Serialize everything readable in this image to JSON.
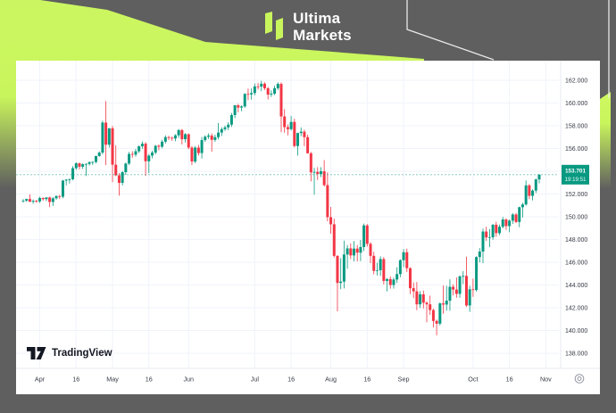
{
  "header": {
    "brand_top": "Ultima",
    "brand_bottom": "Markets",
    "accent_color": "#c9f55c",
    "frame_color": "#5f5f5f"
  },
  "attribution": {
    "text": "TradingView"
  },
  "chart_data": {
    "type": "candlestick",
    "title": "",
    "up_color": "#089981",
    "down_color": "#f23645",
    "grid_color": "#f0f3fa",
    "axis_text_color": "#363a45",
    "last_price": "153.701",
    "last_price_value": 153.701,
    "countdown": "19:19:51",
    "badge_color": "#089981",
    "ylim": [
      137.0,
      163.5
    ],
    "y_axis_labels": [
      "162.000",
      "160.000",
      "158.000",
      "156.000",
      "154.000",
      "152.000",
      "150.000",
      "148.000",
      "146.000",
      "144.000",
      "142.000",
      "140.000",
      "138.000"
    ],
    "x_labels": [
      {
        "text": "Apr",
        "index": 5
      },
      {
        "text": "16",
        "index": 16
      },
      {
        "text": "May",
        "index": 27
      },
      {
        "text": "16",
        "index": 38
      },
      {
        "text": "Jun",
        "index": 50
      },
      {
        "text": "Jul",
        "index": 70
      },
      {
        "text": "16",
        "index": 81
      },
      {
        "text": "Aug",
        "index": 93
      },
      {
        "text": "16",
        "index": 104
      },
      {
        "text": "Sep",
        "index": 115
      },
      {
        "text": "Oct",
        "index": 136
      },
      {
        "text": "16",
        "index": 147
      },
      {
        "text": "Nov",
        "index": 158
      }
    ],
    "candles": [
      [
        151.4,
        151.55,
        151.25,
        151.42
      ],
      [
        151.42,
        151.6,
        151.3,
        151.56
      ],
      [
        151.56,
        151.97,
        151.3,
        151.32
      ],
      [
        151.32,
        151.52,
        151.14,
        151.4
      ],
      [
        151.4,
        151.48,
        151.22,
        151.35
      ],
      [
        151.35,
        151.76,
        151.22,
        151.65
      ],
      [
        151.65,
        151.7,
        151.42,
        151.55
      ],
      [
        151.55,
        151.72,
        151.38,
        151.7
      ],
      [
        151.7,
        151.76,
        150.85,
        151.3
      ],
      [
        151.3,
        151.72,
        150.96,
        151.62
      ],
      [
        151.62,
        151.88,
        151.5,
        151.82
      ],
      [
        151.82,
        151.92,
        151.56,
        151.76
      ],
      [
        151.76,
        153.24,
        151.62,
        153.18
      ],
      [
        153.18,
        153.32,
        152.76,
        153.26
      ],
      [
        153.26,
        153.38,
        152.92,
        153.3
      ],
      [
        153.3,
        154.45,
        153.2,
        154.27
      ],
      [
        154.27,
        154.79,
        154.12,
        154.7
      ],
      [
        154.7,
        154.76,
        154.16,
        154.4
      ],
      [
        154.4,
        154.7,
        154.2,
        154.62
      ],
      [
        154.62,
        154.7,
        153.58,
        154.65
      ],
      [
        154.65,
        154.86,
        154.5,
        154.8
      ],
      [
        154.8,
        154.88,
        154.56,
        154.82
      ],
      [
        154.82,
        155.37,
        154.7,
        155.34
      ],
      [
        155.34,
        155.75,
        155.28,
        155.64
      ],
      [
        155.64,
        158.44,
        155.5,
        158.28
      ],
      [
        158.28,
        160.17,
        154.54,
        156.34
      ],
      [
        156.34,
        157.8,
        156.08,
        157.78
      ],
      [
        157.78,
        157.98,
        153.04,
        154.58
      ],
      [
        154.58,
        156.28,
        153.58,
        153.64
      ],
      [
        153.64,
        153.84,
        151.86,
        152.98
      ],
      [
        152.98,
        154.01,
        152.76,
        153.92
      ],
      [
        153.92,
        154.76,
        153.68,
        154.68
      ],
      [
        154.68,
        155.7,
        154.54,
        155.52
      ],
      [
        155.52,
        155.76,
        155.18,
        155.46
      ],
      [
        155.46,
        155.96,
        155.28,
        155.76
      ],
      [
        155.76,
        156.26,
        155.6,
        156.2
      ],
      [
        156.2,
        156.62,
        155.98,
        156.42
      ],
      [
        156.42,
        156.56,
        153.6,
        154.88
      ],
      [
        154.88,
        155.52,
        153.84,
        155.38
      ],
      [
        155.38,
        155.8,
        155.14,
        155.64
      ],
      [
        155.64,
        156.32,
        155.48,
        156.24
      ],
      [
        156.24,
        156.36,
        155.84,
        156.16
      ],
      [
        156.16,
        156.76,
        156.02,
        156.6
      ],
      [
        156.6,
        157.16,
        156.44,
        157.0
      ],
      [
        157.0,
        157.12,
        156.74,
        156.94
      ],
      [
        156.94,
        157.06,
        156.68,
        156.88
      ],
      [
        156.88,
        157.26,
        156.64,
        157.16
      ],
      [
        157.16,
        157.71,
        156.94,
        157.62
      ],
      [
        157.62,
        157.72,
        156.36,
        156.82
      ],
      [
        156.82,
        157.36,
        156.54,
        157.26
      ],
      [
        157.26,
        157.32,
        155.94,
        156.08
      ],
      [
        156.08,
        156.22,
        154.55,
        154.86
      ],
      [
        154.86,
        156.22,
        154.7,
        156.08
      ],
      [
        156.08,
        156.32,
        155.38,
        155.6
      ],
      [
        155.6,
        157.02,
        155.12,
        156.74
      ],
      [
        156.74,
        157.16,
        156.58,
        157.04
      ],
      [
        157.04,
        157.32,
        156.84,
        157.14
      ],
      [
        157.14,
        157.32,
        155.72,
        156.76
      ],
      [
        156.76,
        157.22,
        156.58,
        157.0
      ],
      [
        157.0,
        158.25,
        156.8,
        157.4
      ],
      [
        157.4,
        157.86,
        157.1,
        157.7
      ],
      [
        157.7,
        158.02,
        157.54,
        157.86
      ],
      [
        157.86,
        158.32,
        157.62,
        158.1
      ],
      [
        158.1,
        159.12,
        157.9,
        158.94
      ],
      [
        158.94,
        159.84,
        158.68,
        159.8
      ],
      [
        159.8,
        159.93,
        159.18,
        159.6
      ],
      [
        159.6,
        159.78,
        159.28,
        159.7
      ],
      [
        159.7,
        160.87,
        159.58,
        160.8
      ],
      [
        160.8,
        161.27,
        160.26,
        160.76
      ],
      [
        160.76,
        161.28,
        160.3,
        160.88
      ],
      [
        160.88,
        161.72,
        160.68,
        161.46
      ],
      [
        161.46,
        161.76,
        161.18,
        161.44
      ],
      [
        161.44,
        161.95,
        161.04,
        161.7
      ],
      [
        161.7,
        161.82,
        161.14,
        161.3
      ],
      [
        161.3,
        161.42,
        160.32,
        160.74
      ],
      [
        160.74,
        161.12,
        160.54,
        160.82
      ],
      [
        160.82,
        161.52,
        160.7,
        161.3
      ],
      [
        161.3,
        161.82,
        161.14,
        161.68
      ],
      [
        161.68,
        161.81,
        157.44,
        158.82
      ],
      [
        158.82,
        159.46,
        157.38,
        157.88
      ],
      [
        157.88,
        158.12,
        157.16,
        157.7
      ],
      [
        157.7,
        158.86,
        157.58,
        158.34
      ],
      [
        158.34,
        158.62,
        156.1,
        156.22
      ],
      [
        156.22,
        157.4,
        155.38,
        157.36
      ],
      [
        157.36,
        157.86,
        157.08,
        157.48
      ],
      [
        157.48,
        157.66,
        156.2,
        157.0
      ],
      [
        157.0,
        157.22,
        155.55,
        155.58
      ],
      [
        155.58,
        155.7,
        153.11,
        153.9
      ],
      [
        153.9,
        154.3,
        151.94,
        153.94
      ],
      [
        153.94,
        154.36,
        153.24,
        153.76
      ],
      [
        153.76,
        154.36,
        153.48,
        154.0
      ],
      [
        154.0,
        154.98,
        152.66,
        152.78
      ],
      [
        152.78,
        153.9,
        149.6,
        149.96
      ],
      [
        149.96,
        150.86,
        148.51,
        149.34
      ],
      [
        149.34,
        149.82,
        146.42,
        146.56
      ],
      [
        146.56,
        146.62,
        141.68,
        144.18
      ],
      [
        144.18,
        146.36,
        143.63,
        144.3
      ],
      [
        144.3,
        147.9,
        143.7,
        146.68
      ],
      [
        146.68,
        147.52,
        145.43,
        147.22
      ],
      [
        147.22,
        147.66,
        146.28,
        146.6
      ],
      [
        146.6,
        147.86,
        146.08,
        147.2
      ],
      [
        147.2,
        147.52,
        146.08,
        146.84
      ],
      [
        146.84,
        147.96,
        146.1,
        147.34
      ],
      [
        147.34,
        149.4,
        146.98,
        149.24
      ],
      [
        149.24,
        149.36,
        147.38,
        147.62
      ],
      [
        147.62,
        147.76,
        145.92,
        146.56
      ],
      [
        146.56,
        146.92,
        144.94,
        145.24
      ],
      [
        145.24,
        145.96,
        144.84,
        145.3
      ],
      [
        145.3,
        146.52,
        144.8,
        146.28
      ],
      [
        146.28,
        146.46,
        144.05,
        144.36
      ],
      [
        144.36,
        144.62,
        143.44,
        144.52
      ],
      [
        144.52,
        144.76,
        143.68,
        144.0
      ],
      [
        144.0,
        144.66,
        143.68,
        144.48
      ],
      [
        144.48,
        145.56,
        144.18,
        144.96
      ],
      [
        144.96,
        146.26,
        144.68,
        146.18
      ],
      [
        146.18,
        147.16,
        145.58,
        146.88
      ],
      [
        146.88,
        147.2,
        145.14,
        145.48
      ],
      [
        145.48,
        145.56,
        143.2,
        143.72
      ],
      [
        143.72,
        144.22,
        142.84,
        143.44
      ],
      [
        143.44,
        144.26,
        141.78,
        142.3
      ],
      [
        142.3,
        143.46,
        141.98,
        143.18
      ],
      [
        143.18,
        143.52,
        141.94,
        142.44
      ],
      [
        142.44,
        142.56,
        140.71,
        142.3
      ],
      [
        142.3,
        143.06,
        141.38,
        141.8
      ],
      [
        141.8,
        141.92,
        140.28,
        140.84
      ],
      [
        140.84,
        140.96,
        139.58,
        140.6
      ],
      [
        140.6,
        142.46,
        140.44,
        142.38
      ],
      [
        142.38,
        143.95,
        141.48,
        142.28
      ],
      [
        142.28,
        143.92,
        141.74,
        142.62
      ],
      [
        142.62,
        144.5,
        141.74,
        143.84
      ],
      [
        143.84,
        144.06,
        143.08,
        143.6
      ],
      [
        143.6,
        144.66,
        142.88,
        143.22
      ],
      [
        143.22,
        144.84,
        142.88,
        144.76
      ],
      [
        144.76,
        145.22,
        144.08,
        144.8
      ],
      [
        144.8,
        146.49,
        142.07,
        142.2
      ],
      [
        142.2,
        143.92,
        141.64,
        143.62
      ],
      [
        143.62,
        144.56,
        142.96,
        143.56
      ],
      [
        143.56,
        146.52,
        143.42,
        146.46
      ],
      [
        146.46,
        147.24,
        145.98,
        146.94
      ],
      [
        146.94,
        148.96,
        145.92,
        148.7
      ],
      [
        148.7,
        149.12,
        147.88,
        148.18
      ],
      [
        148.18,
        148.92,
        147.34,
        148.2
      ],
      [
        148.2,
        149.36,
        147.98,
        149.3
      ],
      [
        149.3,
        149.56,
        148.24,
        148.56
      ],
      [
        148.56,
        149.32,
        148.38,
        149.12
      ],
      [
        149.12,
        149.98,
        148.98,
        149.76
      ],
      [
        149.76,
        149.86,
        148.84,
        149.18
      ],
      [
        149.18,
        149.76,
        148.64,
        149.66
      ],
      [
        149.66,
        150.32,
        149.38,
        150.2
      ],
      [
        150.2,
        150.34,
        149.44,
        149.54
      ],
      [
        149.54,
        150.89,
        149.08,
        150.84
      ],
      [
        150.84,
        151.22,
        149.94,
        151.08
      ],
      [
        151.08,
        153.19,
        150.98,
        152.76
      ],
      [
        152.76,
        152.88,
        151.54,
        151.84
      ],
      [
        151.84,
        152.42,
        151.44,
        152.3
      ],
      [
        152.3,
        153.36,
        152.08,
        153.28
      ],
      [
        153.28,
        153.75,
        152.94,
        153.7
      ]
    ]
  }
}
